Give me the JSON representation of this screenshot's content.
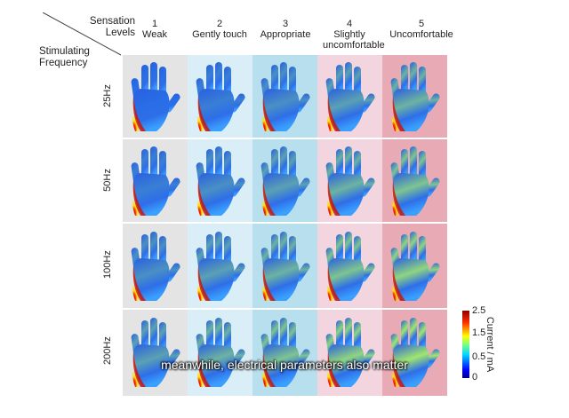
{
  "header": {
    "corner_top": "Sensation\nLevels",
    "corner_bottom": "Stimulating\nFrequency",
    "levels": [
      {
        "num": "1",
        "label": "Weak",
        "bg": "#e4e4e4"
      },
      {
        "num": "2",
        "label": "Gently touch",
        "bg": "#d9eef6"
      },
      {
        "num": "3",
        "label": "Appropriate",
        "bg": "#b8dfee"
      },
      {
        "num": "4",
        "label": "Slightly uncomfortable",
        "bg": "#f2d5de"
      },
      {
        "num": "5",
        "label": "Uncomfortable",
        "bg": "#e8aab5"
      }
    ]
  },
  "rows": [
    "25Hz",
    "50Hz",
    "100Hz",
    "200Hz"
  ],
  "colorbar": {
    "title": "Current / mA",
    "ticks": [
      "2.5",
      "1.5",
      "0.5",
      "0"
    ]
  },
  "subtitle": "meanwhile, electrical parameters also matter"
}
